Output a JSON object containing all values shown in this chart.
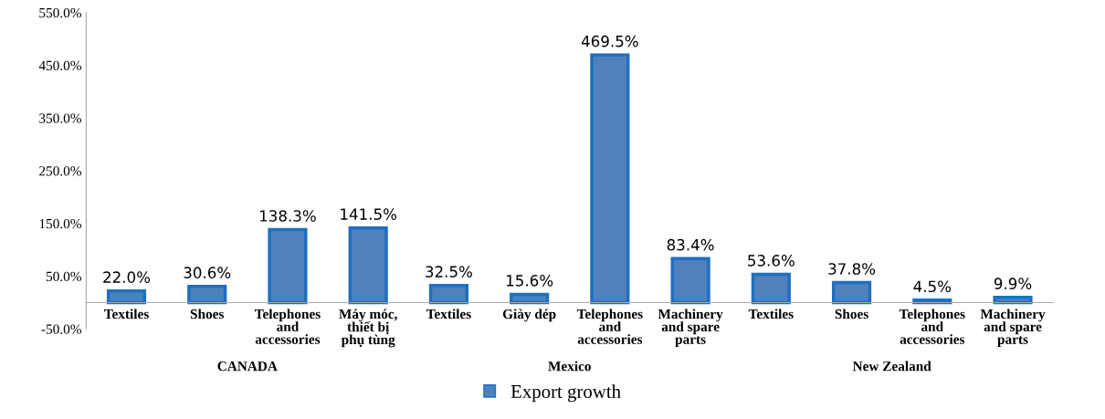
{
  "chart_data": {
    "type": "bar",
    "categories": [
      "Textiles",
      "Shoes",
      "Telephones\nand\naccessories",
      "Máy móc,\nthiết bị\nphụ tùng",
      "Textiles",
      "Giày dép",
      "Telephones\nand\naccessories",
      "Machinery\nand spare\nparts",
      "Textiles",
      "Shoes",
      "Telephones\nand\naccessories",
      "Machinery\nand spare\nparts"
    ],
    "series": [
      {
        "name": "Export growth",
        "color": "#4f81bd",
        "values": [
          22.0,
          30.6,
          138.3,
          141.5,
          32.5,
          15.6,
          469.5,
          83.4,
          53.6,
          37.8,
          4.5,
          9.9
        ],
        "value_labels": [
          "22.0%",
          "30.6%",
          "138.3%",
          "141.5%",
          "32.5%",
          "15.6%",
          "469.5%",
          "83.4%",
          "53.6%",
          "37.8%",
          "4.5%",
          "9.9%"
        ]
      }
    ],
    "annotations": [
      "CANADA",
      "Mexico",
      "New Zealand"
    ],
    "ylim": [
      -50,
      550
    ],
    "yticks": [
      {
        "value": -50,
        "label": "-50.0%"
      },
      {
        "value": 50,
        "label": "50.0%"
      },
      {
        "value": 150,
        "label": "150.0%"
      },
      {
        "value": 250,
        "label": "250.0%"
      },
      {
        "value": 350,
        "label": "350.0%"
      },
      {
        "value": 450,
        "label": "450.0%"
      },
      {
        "value": 550,
        "label": "550.0%"
      }
    ],
    "grid": false,
    "legend": "bottom"
  }
}
